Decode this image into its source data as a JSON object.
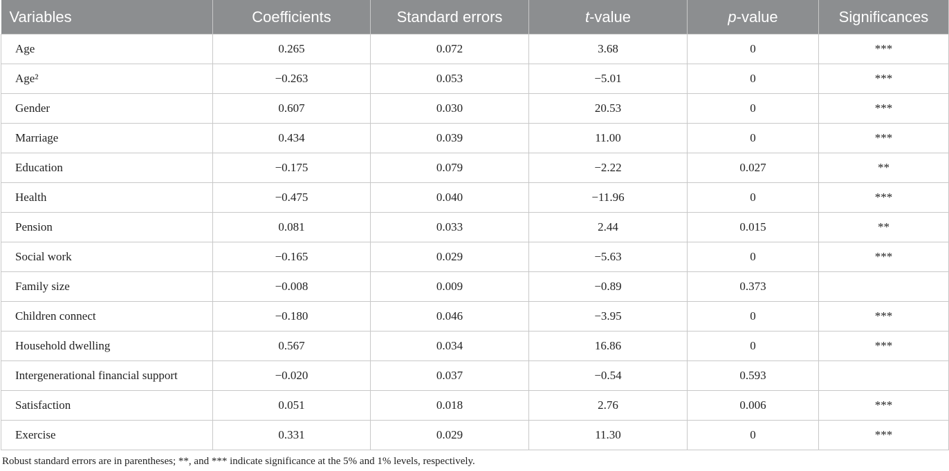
{
  "table": {
    "header": [
      "Variables",
      "Coefficients",
      "Standard errors",
      "t-value",
      "p-value",
      "Significances"
    ],
    "rows": [
      [
        "Age",
        "0.265",
        "0.072",
        "3.68",
        "0",
        "***"
      ],
      [
        "Age²",
        "−0.263",
        "0.053",
        "−5.01",
        "0",
        "***"
      ],
      [
        "Gender",
        "0.607",
        "0.030",
        "20.53",
        "0",
        "***"
      ],
      [
        "Marriage",
        "0.434",
        "0.039",
        "11.00",
        "0",
        "***"
      ],
      [
        "Education",
        "−0.175",
        "0.079",
        "−2.22",
        "0.027",
        "**"
      ],
      [
        "Health",
        "−0.475",
        "0.040",
        "−11.96",
        "0",
        "***"
      ],
      [
        "Pension",
        "0.081",
        "0.033",
        "2.44",
        "0.015",
        "**"
      ],
      [
        "Social work",
        "−0.165",
        "0.029",
        "−5.63",
        "0",
        "***"
      ],
      [
        "Family size",
        "−0.008",
        "0.009",
        "−0.89",
        "0.373",
        null
      ],
      [
        "Children connect",
        "−0.180",
        "0.046",
        "−3.95",
        "0",
        "***"
      ],
      [
        "Household dwelling",
        "0.567",
        "0.034",
        "16.86",
        "0",
        "***"
      ],
      [
        "Intergenerational financial support",
        "−0.020",
        "0.037",
        "−0.54",
        "0.593",
        null
      ],
      [
        "Satisfaction",
        "0.051",
        "0.018",
        "2.76",
        "0.006",
        "***"
      ],
      [
        "Exercise",
        "0.331",
        "0.029",
        "11.30",
        "0",
        "***"
      ]
    ],
    "footnote": "Robust standard errors are in parentheses; **, and *** indicate significance at the 5% and 1% levels, respectively."
  }
}
